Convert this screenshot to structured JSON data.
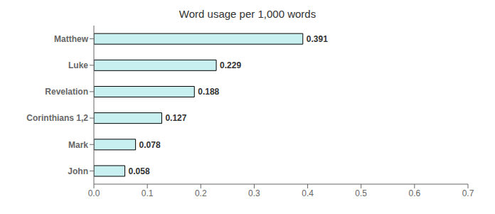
{
  "chart_data": {
    "type": "bar",
    "title": "Word usage per 1,000 words",
    "orientation": "horizontal",
    "categories": [
      "Matthew",
      "Luke",
      "Revelation",
      "Corinthians 1,2",
      "Mark",
      "John"
    ],
    "values": [
      0.391,
      0.229,
      0.188,
      0.127,
      0.078,
      0.058
    ],
    "color": "#c8f0f0",
    "xlim": [
      0.0,
      0.7
    ],
    "xticks": [
      {
        "value": 0,
        "label": "0.0"
      },
      0.1,
      0.2,
      0.3,
      0.4,
      0.5,
      0.6,
      0.7
    ],
    "data_labels": true,
    "grid": false
  }
}
